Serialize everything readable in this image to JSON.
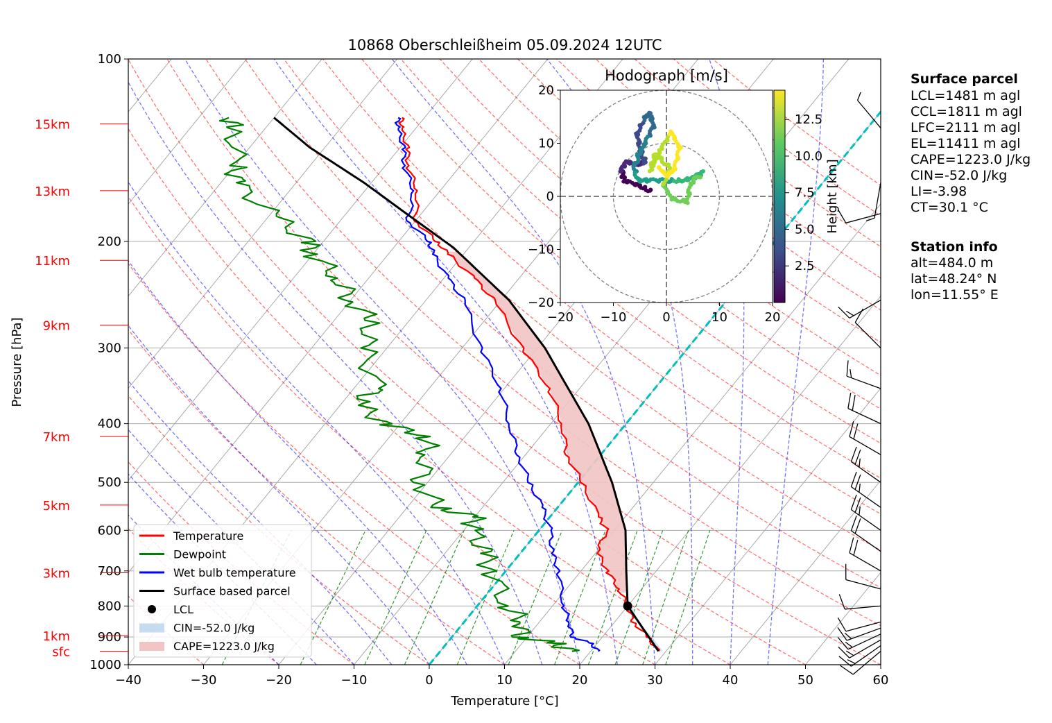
{
  "title": "10868 Oberschleißheim 05.09.2024 12UTC",
  "colors": {
    "temperature": "#ff0000",
    "dewpoint": "#008000",
    "wetbulb": "#0000ff",
    "parcel": "#000000",
    "cape_fill": "#f2c4c4",
    "cin_fill": "#c6dbef",
    "height_labels": "#ff0000",
    "mixing_ratio": "#008000",
    "dry_adiabats": "#ff0000",
    "moist_adiabats": "#0000ff",
    "zero_isotherm": "#00bfbf",
    "isotherms": "#aaaaaa"
  },
  "chart_data": [
    {
      "type": "skew-t",
      "title": "10868 Oberschleißheim 05.09.2024 12UTC",
      "xlabel": "Temperature [°C]",
      "ylabel": "Pressure [hPa]",
      "xlim": [
        -40,
        60
      ],
      "ylim": [
        1000,
        100
      ],
      "y_scale": "log",
      "grid": true,
      "x_ticks": [
        "−40",
        "−30",
        "−20",
        "−10",
        "0",
        "10",
        "20",
        "30",
        "40",
        "50",
        "60"
      ],
      "y_ticks": [
        "100",
        "200",
        "300",
        "400",
        "500",
        "600",
        "700",
        "800",
        "900",
        "1000"
      ],
      "height_labels": [
        {
          "label": "15km",
          "p": 128
        },
        {
          "label": "13km",
          "p": 165
        },
        {
          "label": "11km",
          "p": 215
        },
        {
          "label": "9km",
          "p": 275
        },
        {
          "label": "7km",
          "p": 420
        },
        {
          "label": "5km",
          "p": 545
        },
        {
          "label": "3km",
          "p": 705
        },
        {
          "label": "1km",
          "p": 895
        },
        {
          "label": "sfc",
          "p": 950
        }
      ],
      "series": [
        {
          "name": "Temperature",
          "points": [
            {
              "p": 950,
              "t": 29.0
            },
            {
              "p": 900,
              "t": 26.0
            },
            {
              "p": 850,
              "t": 22.5
            },
            {
              "p": 800,
              "t": 20.0
            },
            {
              "p": 750,
              "t": 17.0
            },
            {
              "p": 700,
              "t": 13.5
            },
            {
              "p": 650,
              "t": 10.0
            },
            {
              "p": 600,
              "t": 9.0
            },
            {
              "p": 570,
              "t": 6.5
            },
            {
              "p": 500,
              "t": 0.5
            },
            {
              "p": 450,
              "t": -4.5
            },
            {
              "p": 400,
              "t": -8.5
            },
            {
              "p": 350,
              "t": -14.0
            },
            {
              "p": 300,
              "t": -22.0
            },
            {
              "p": 250,
              "t": -31.0
            },
            {
              "p": 230,
              "t": -36.0
            },
            {
              "p": 210,
              "t": -42.0
            },
            {
              "p": 200,
              "t": -45.0
            },
            {
              "p": 185,
              "t": -50.0
            },
            {
              "p": 165,
              "t": -53.0
            },
            {
              "p": 150,
              "t": -57.0
            },
            {
              "p": 140,
              "t": -59.0
            },
            {
              "p": 130,
              "t": -62.0
            },
            {
              "p": 125,
              "t": -63.0
            }
          ]
        },
        {
          "name": "Dewpoint",
          "points": [
            {
              "p": 950,
              "t": 17.5
            },
            {
              "p": 920,
              "t": 14.0
            },
            {
              "p": 900,
              "t": 9.0
            },
            {
              "p": 850,
              "t": 8.0
            },
            {
              "p": 800,
              "t": 4.0
            },
            {
              "p": 700,
              "t": -2.0
            },
            {
              "p": 650,
              "t": -5.0
            },
            {
              "p": 600,
              "t": -9.0
            },
            {
              "p": 570,
              "t": -10.0
            },
            {
              "p": 550,
              "t": -16.0
            },
            {
              "p": 500,
              "t": -21.0
            },
            {
              "p": 450,
              "t": -23.0
            },
            {
              "p": 420,
              "t": -25.0
            },
            {
              "p": 400,
              "t": -32.0
            },
            {
              "p": 370,
              "t": -38.0
            },
            {
              "p": 350,
              "t": -37.0
            },
            {
              "p": 300,
              "t": -43.0
            },
            {
              "p": 270,
              "t": -45.0
            },
            {
              "p": 250,
              "t": -50.0
            },
            {
              "p": 230,
              "t": -54.0
            },
            {
              "p": 210,
              "t": -60.0
            },
            {
              "p": 200,
              "t": -62.0
            },
            {
              "p": 180,
              "t": -70.0
            },
            {
              "p": 160,
              "t": -78.0
            },
            {
              "p": 150,
              "t": -80.0
            },
            {
              "p": 130,
              "t": -84.0
            },
            {
              "p": 125,
              "t": -86.0
            }
          ]
        },
        {
          "name": "Wet bulb temperature",
          "points": [
            {
              "p": 950,
              "t": 21.0
            },
            {
              "p": 920,
              "t": 19.0
            },
            {
              "p": 900,
              "t": 16.0
            },
            {
              "p": 850,
              "t": 14.0
            },
            {
              "p": 800,
              "t": 11.5
            },
            {
              "p": 700,
              "t": 7.0
            },
            {
              "p": 650,
              "t": 4.0
            },
            {
              "p": 600,
              "t": 1.5
            },
            {
              "p": 550,
              "t": -2.0
            },
            {
              "p": 500,
              "t": -6.5
            },
            {
              "p": 450,
              "t": -11.0
            },
            {
              "p": 400,
              "t": -15.5
            },
            {
              "p": 350,
              "t": -20.5
            },
            {
              "p": 300,
              "t": -27.5
            },
            {
              "p": 250,
              "t": -35.0
            },
            {
              "p": 230,
              "t": -39.5
            },
            {
              "p": 210,
              "t": -44.0
            },
            {
              "p": 200,
              "t": -46.0
            },
            {
              "p": 185,
              "t": -51.0
            },
            {
              "p": 165,
              "t": -53.5
            },
            {
              "p": 150,
              "t": -57.5
            },
            {
              "p": 140,
              "t": -59.5
            },
            {
              "p": 130,
              "t": -62.5
            },
            {
              "p": 125,
              "t": -63.5
            }
          ]
        },
        {
          "name": "Surface based parcel",
          "points": [
            {
              "p": 950,
              "t": 29.0
            },
            {
              "p": 800,
              "t": 20.0
            },
            {
              "p": 700,
              "t": 16.0
            },
            {
              "p": 600,
              "t": 11.5
            },
            {
              "p": 500,
              "t": 4.5
            },
            {
              "p": 400,
              "t": -5.0
            },
            {
              "p": 300,
              "t": -19.0
            },
            {
              "p": 250,
              "t": -29.0
            },
            {
              "p": 205,
              "t": -42.0
            },
            {
              "p": 180,
              "t": -52.0
            },
            {
              "p": 160,
              "t": -61.0
            },
            {
              "p": 140,
              "t": -72.0
            },
            {
              "p": 125,
              "t": -80.0
            }
          ]
        }
      ],
      "lcl": {
        "p": 800,
        "t": 20.0
      },
      "legend_position": "lower-left",
      "legend": [
        {
          "label": "Temperature",
          "kind": "line",
          "color": "#ff0000"
        },
        {
          "label": "Dewpoint",
          "kind": "line",
          "color": "#008000"
        },
        {
          "label": "Wet bulb temperature",
          "kind": "line",
          "color": "#0000ff"
        },
        {
          "label": "Surface based parcel",
          "kind": "line",
          "color": "#000000"
        },
        {
          "label": "LCL",
          "kind": "dot",
          "color": "#000000"
        },
        {
          "label": "CIN=-52.0 J/kg",
          "kind": "patch",
          "color": "#c6dbef"
        },
        {
          "label": "CAPE=1223.0 J/kg",
          "kind": "patch",
          "color": "#f2c4c4"
        }
      ],
      "wind_barbs": [
        {
          "p": 950,
          "dir": 230,
          "kt": 12
        },
        {
          "p": 930,
          "dir": 235,
          "kt": 15
        },
        {
          "p": 910,
          "dir": 240,
          "kt": 17
        },
        {
          "p": 890,
          "dir": 245,
          "kt": 15
        },
        {
          "p": 870,
          "dir": 250,
          "kt": 14
        },
        {
          "p": 850,
          "dir": 255,
          "kt": 12
        },
        {
          "p": 800,
          "dir": 265,
          "kt": 10
        },
        {
          "p": 750,
          "dir": 285,
          "kt": 12
        },
        {
          "p": 700,
          "dir": 300,
          "kt": 20
        },
        {
          "p": 650,
          "dir": 305,
          "kt": 22
        },
        {
          "p": 600,
          "dir": 305,
          "kt": 25
        },
        {
          "p": 550,
          "dir": 305,
          "kt": 27
        },
        {
          "p": 500,
          "dir": 305,
          "kt": 25
        },
        {
          "p": 450,
          "dir": 300,
          "kt": 22
        },
        {
          "p": 400,
          "dir": 295,
          "kt": 20
        },
        {
          "p": 350,
          "dir": 290,
          "kt": 15
        },
        {
          "p": 300,
          "dir": 315,
          "kt": 10
        },
        {
          "p": 250,
          "dir": 240,
          "kt": 15
        },
        {
          "p": 180,
          "dir": 255,
          "kt": 10
        },
        {
          "p": 160,
          "dir": 190,
          "kt": 5
        },
        {
          "p": 130,
          "dir": 320,
          "kt": 5
        }
      ]
    },
    {
      "type": "scatter",
      "title": "Hodograph [m/s]",
      "xlim": [
        -20,
        20
      ],
      "ylim": [
        -20,
        20
      ],
      "x_ticks": [
        "−20",
        "−10",
        "0",
        "10",
        "20"
      ],
      "y_ticks": [
        "−20",
        "−10",
        "0",
        "10",
        "20"
      ],
      "rings": [
        10,
        20
      ],
      "colorbar": {
        "label": "Height [km]",
        "range": [
          0,
          14.5
        ],
        "ticks": [
          "2.5",
          "5.0",
          "7.5",
          "10.0",
          "12.5"
        ],
        "colormap": "viridis"
      },
      "points": [
        {
          "u": -3.0,
          "v": 1.0,
          "h": 0.2
        },
        {
          "u": -5.0,
          "v": 2.0,
          "h": 0.6
        },
        {
          "u": -8.0,
          "v": 3.0,
          "h": 1.0
        },
        {
          "u": -8.5,
          "v": 5.0,
          "h": 1.5
        },
        {
          "u": -7.5,
          "v": 6.5,
          "h": 2.0
        },
        {
          "u": -5.5,
          "v": 6.0,
          "h": 2.5
        },
        {
          "u": -4.0,
          "v": 6.5,
          "h": 3.0
        },
        {
          "u": -5.0,
          "v": 9.0,
          "h": 3.5
        },
        {
          "u": -5.5,
          "v": 12.0,
          "h": 4.0
        },
        {
          "u": -4.0,
          "v": 15.0,
          "h": 4.5
        },
        {
          "u": -3.0,
          "v": 15.5,
          "h": 5.0
        },
        {
          "u": -2.5,
          "v": 13.0,
          "h": 5.5
        },
        {
          "u": -4.0,
          "v": 10.0,
          "h": 6.0
        },
        {
          "u": -5.0,
          "v": 8.5,
          "h": 6.5
        },
        {
          "u": -6.0,
          "v": 5.5,
          "h": 7.0
        },
        {
          "u": -5.5,
          "v": 3.0,
          "h": 7.5
        },
        {
          "u": -3.0,
          "v": 3.0,
          "h": 8.0
        },
        {
          "u": 0.5,
          "v": 3.0,
          "h": 8.5
        },
        {
          "u": 3.0,
          "v": 3.0,
          "h": 9.0
        },
        {
          "u": 5.0,
          "v": 3.5,
          "h": 9.5
        },
        {
          "u": 7.0,
          "v": 4.5,
          "h": 10.0
        },
        {
          "u": 4.5,
          "v": 2.5,
          "h": 10.5
        },
        {
          "u": 4.0,
          "v": -1.0,
          "h": 11.0
        },
        {
          "u": 1.0,
          "v": -0.5,
          "h": 11.3
        },
        {
          "u": -0.5,
          "v": 2.0,
          "h": 11.6
        },
        {
          "u": 0.5,
          "v": 5.5,
          "h": 11.9
        },
        {
          "u": -2.0,
          "v": 8.0,
          "h": 12.2
        },
        {
          "u": -3.0,
          "v": 5.0,
          "h": 12.5
        },
        {
          "u": -1.0,
          "v": 9.0,
          "h": 12.8
        },
        {
          "u": 1.0,
          "v": 12.0,
          "h": 13.1
        },
        {
          "u": 2.5,
          "v": 9.0,
          "h": 13.4
        },
        {
          "u": 1.5,
          "v": 5.0,
          "h": 13.7
        },
        {
          "u": 0.0,
          "v": 4.0,
          "h": 14.0
        },
        {
          "u": -1.5,
          "v": 5.5,
          "h": 14.3
        }
      ]
    }
  ],
  "surface_parcel": {
    "heading": "Surface parcel",
    "lines": [
      "LCL=1481 m agl",
      "CCL=1811 m agl",
      "LFC=2111 m agl",
      "EL=11411 m agl",
      "CAPE=1223.0 J/kg",
      "CIN=-52.0 J/kg",
      "LI=-3.98",
      "CT=30.1 °C"
    ]
  },
  "station_info": {
    "heading": "Station info",
    "lines": [
      "alt=484.0 m",
      "lat=48.24° N",
      "lon=11.55° E"
    ]
  }
}
